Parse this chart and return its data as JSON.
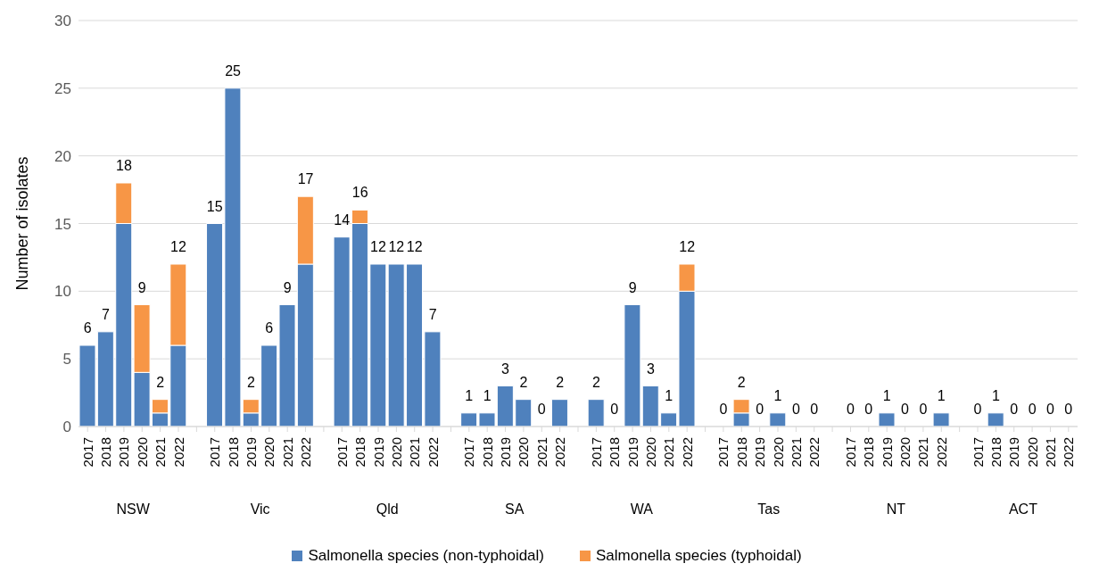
{
  "chart_data": {
    "type": "bar",
    "stacked": true,
    "ylabel": "Number of isolates",
    "categories": [
      "2017",
      "2018",
      "2019",
      "2020",
      "2021",
      "2022",
      null,
      "2017",
      "2018",
      "2019",
      "2020",
      "2021",
      "2022",
      null,
      "2017",
      "2018",
      "2019",
      "2020",
      "2021",
      "2022",
      null,
      "2017",
      "2018",
      "2019",
      "2020",
      "2021",
      "2022",
      null,
      "2017",
      "2018",
      "2019",
      "2020",
      "2021",
      "2022",
      null,
      "2017",
      "2018",
      "2019",
      "2020",
      "2021",
      "2022",
      null,
      "2017",
      "2018",
      "2019",
      "2020",
      "2021",
      "2022",
      null,
      "2017",
      "2018",
      "2019",
      "2020",
      "2021",
      "2022"
    ],
    "series": [
      {
        "name": "Salmonella species (non-typhoidal)",
        "color": "#4f81bd",
        "values": [
          6,
          7,
          15,
          4,
          1,
          6,
          null,
          15,
          25,
          1,
          6,
          9,
          12,
          null,
          14,
          15,
          12,
          12,
          12,
          7,
          null,
          1,
          1,
          3,
          2,
          0,
          2,
          null,
          2,
          0,
          9,
          3,
          1,
          10,
          null,
          0,
          1,
          0,
          1,
          0,
          0,
          null,
          0,
          0,
          1,
          0,
          0,
          1,
          null,
          0,
          1,
          0,
          0,
          0,
          0
        ]
      },
      {
        "name": "Salmonella species (typhoidal)",
        "color": "#f79646",
        "values": [
          0,
          0,
          3,
          5,
          1,
          6,
          null,
          0,
          0,
          1,
          0,
          0,
          5,
          null,
          0,
          1,
          0,
          0,
          0,
          0,
          null,
          0,
          0,
          0,
          0,
          0,
          0,
          null,
          0,
          0,
          0,
          0,
          0,
          2,
          null,
          0,
          1,
          0,
          0,
          0,
          0,
          null,
          0,
          0,
          0,
          0,
          0,
          0,
          null,
          0,
          0,
          0,
          0,
          0,
          0
        ]
      }
    ],
    "totals": [
      "6",
      "7",
      "18",
      "9",
      "2",
      "12",
      null,
      "15",
      "25",
      "2",
      "6",
      "9",
      "17",
      null,
      "14",
      "16",
      "12",
      "12",
      "12",
      "7",
      null,
      "1",
      "1",
      "3",
      "2",
      "0",
      "2",
      null,
      "2",
      "0",
      "9",
      "3",
      "1",
      "12",
      null,
      "0",
      "2",
      "0",
      "1",
      "0",
      "0",
      null,
      "0",
      "0",
      "1",
      "0",
      "0",
      "1",
      null,
      "0",
      "1",
      "0",
      "0",
      "0",
      "0"
    ],
    "annotations": [
      "NSW",
      "Vic",
      "Qld",
      "SA",
      "WA",
      "Tas",
      "NT",
      "ACT"
    ],
    "ylim": [
      0,
      30
    ],
    "yticks": [
      0,
      5,
      10,
      15,
      20,
      25,
      30
    ],
    "grid": "y",
    "legend": "bottom"
  }
}
